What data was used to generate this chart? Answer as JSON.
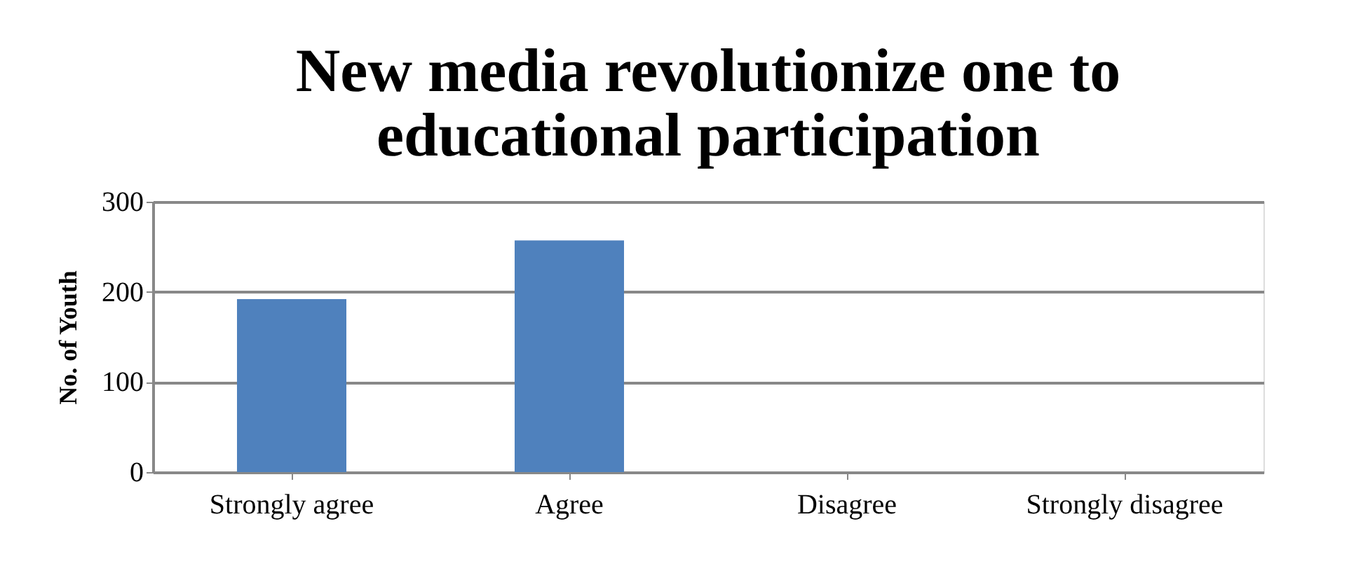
{
  "chart_data": {
    "type": "bar",
    "title": "New media revolutionize one to educational participation",
    "ylabel": "No. of Youth",
    "categories": [
      "Strongly agree",
      "Agree",
      "Disagree",
      "Strongly disagree"
    ],
    "values": [
      192,
      257,
      0,
      0
    ],
    "color": "#4f81bd",
    "ylim": [
      0,
      300
    ],
    "yticks": [
      0,
      100,
      200,
      300
    ],
    "grid": "y"
  }
}
